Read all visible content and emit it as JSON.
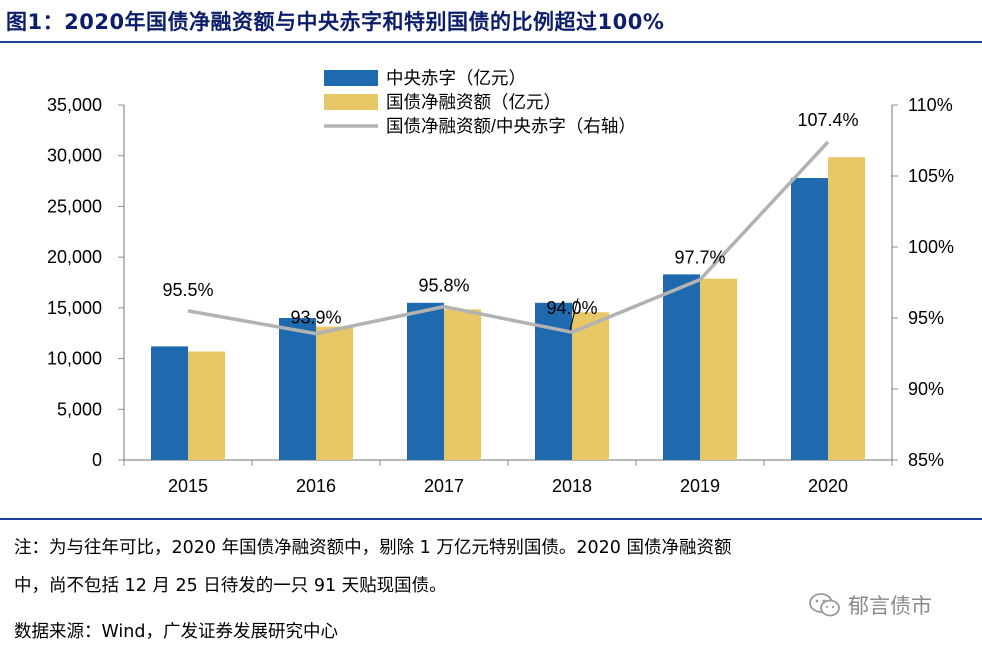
{
  "header": {
    "title": "图1：2020年国债净融资额与中央赤字和特别国债的比例超过100%"
  },
  "chart_data": {
    "type": "bar",
    "categories": [
      "2015",
      "2016",
      "2017",
      "2018",
      "2019",
      "2020"
    ],
    "series": [
      {
        "name": "中央赤字（亿元）",
        "kind": "bar",
        "axis": "left",
        "color": "#1f6aae",
        "values": [
          11200,
          14000,
          15500,
          15500,
          18300,
          27800
        ]
      },
      {
        "name": "国债净融资额（亿元）",
        "kind": "bar",
        "axis": "left",
        "color": "#e8c766",
        "values": [
          10700,
          13150,
          14850,
          14570,
          17880,
          29850
        ]
      },
      {
        "name": "国债净融资额/中央赤字（右轴）",
        "kind": "line",
        "axis": "right",
        "color": "#b2b2b2",
        "values": [
          95.5,
          93.9,
          95.8,
          94.0,
          97.7,
          107.4
        ],
        "labels": [
          "95.5%",
          "93.9%",
          "95.8%",
          "94.0%",
          "97.7%",
          "107.4%"
        ]
      }
    ],
    "y_left": {
      "min": 0,
      "max": 35000,
      "ticks": [
        0,
        5000,
        10000,
        15000,
        20000,
        25000,
        30000,
        35000
      ],
      "tick_labels": [
        "0",
        "5,000",
        "10,000",
        "15,000",
        "20,000",
        "25,000",
        "30,000",
        "35,000"
      ]
    },
    "y_right": {
      "min": 85,
      "max": 110,
      "ticks": [
        85,
        90,
        95,
        100,
        105,
        110
      ],
      "tick_labels": [
        "85%",
        "90%",
        "95%",
        "100%",
        "105%",
        "110%"
      ]
    },
    "legend_position": "top-center",
    "grid": false
  },
  "notes": {
    "line1": "注：为与往年可比，2020 年国债净融资额中，剔除 1 万亿元特别国债。2020 国债净融资额",
    "line2": "中，尚不包括 12 月 25 日待发的一只 91 天贴现国债。",
    "source": "数据来源：Wind，广发证券发展研究中心"
  },
  "watermark": {
    "text": "郁言债市"
  }
}
